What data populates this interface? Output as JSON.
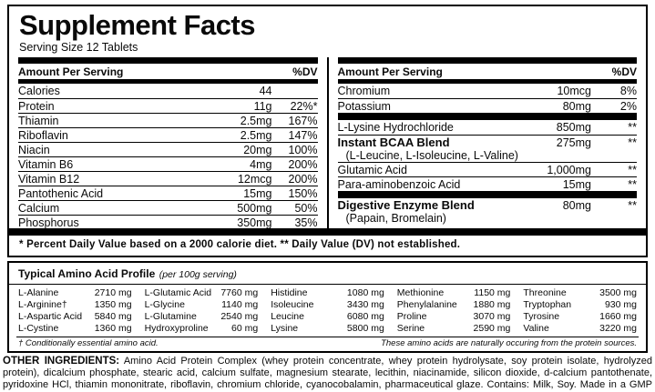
{
  "colors": {
    "ink": "#000000",
    "background": "#ffffff"
  },
  "label": {
    "title": "Supplement Facts",
    "serving_size": "Serving Size 12 Tablets",
    "column_header": "Amount Per Serving",
    "dv_header": "%DV",
    "footnote": "* Percent Daily Value based on a 2000 calorie diet. ** Daily Value (DV) not established."
  },
  "left_table": {
    "rows": [
      {
        "name": "Calories",
        "amount": "44",
        "dv": ""
      },
      {
        "name": "Protein",
        "amount": "11g",
        "dv": "22%*"
      },
      {
        "name": "Thiamin",
        "amount": "2.5mg",
        "dv": "167%"
      },
      {
        "name": "Riboflavin",
        "amount": "2.5mg",
        "dv": "147%"
      },
      {
        "name": "Niacin",
        "amount": "20mg",
        "dv": "100%"
      },
      {
        "name": "Vitamin B6",
        "amount": "4mg",
        "dv": "200%"
      },
      {
        "name": "Vitamin B12",
        "amount": "12mcg",
        "dv": "200%"
      },
      {
        "name": "Pantothenic Acid",
        "amount": "15mg",
        "dv": "150%"
      },
      {
        "name": "Calcium",
        "amount": "500mg",
        "dv": "50%"
      },
      {
        "name": "Phosphorus",
        "amount": "350mg",
        "dv": "35%"
      }
    ]
  },
  "right_table": {
    "rows": [
      {
        "name": "Chromium",
        "amount": "10mcg",
        "dv": "8%"
      },
      {
        "name": "Potassium",
        "amount": "80mg",
        "dv": "2%"
      },
      {
        "name": "L-Lysine Hydrochloride",
        "amount": "850mg",
        "dv": "**"
      },
      {
        "name": "Instant BCAA Blend",
        "amount": "275mg",
        "dv": "**",
        "sub": "(L-Leucine, L-Isoleucine, L-Valine)"
      },
      {
        "name": "Glutamic Acid",
        "amount": "1,000mg",
        "dv": "**"
      },
      {
        "name": "Para-aminobenzoic Acid",
        "amount": "15mg",
        "dv": "**"
      },
      {
        "name": "Digestive Enzyme Blend",
        "amount": "80mg",
        "dv": "**",
        "sub": "(Papain, Bromelain)"
      }
    ]
  },
  "amino_profile": {
    "title": "Typical Amino Acid Profile",
    "subtitle": "(per 100g serving)",
    "entries": [
      {
        "name": "L-Alanine",
        "amount": "2710 mg"
      },
      {
        "name": "L-Arginine†",
        "amount": "1350 mg"
      },
      {
        "name": "L-Aspartic Acid",
        "amount": "5840 mg"
      },
      {
        "name": "L-Cystine",
        "amount": "1360 mg"
      },
      {
        "name": "L-Glutamic Acid",
        "amount": "7760 mg"
      },
      {
        "name": "L-Glycine",
        "amount": "1140 mg"
      },
      {
        "name": "L-Glutamine",
        "amount": "2540 mg"
      },
      {
        "name": "Hydroxyproline",
        "amount": "60 mg"
      },
      {
        "name": "Histidine",
        "amount": "1080 mg"
      },
      {
        "name": "Isoleucine",
        "amount": "3430 mg"
      },
      {
        "name": "Leucine",
        "amount": "6080 mg"
      },
      {
        "name": "Lysine",
        "amount": "5800 mg"
      },
      {
        "name": "Methionine",
        "amount": "1150 mg"
      },
      {
        "name": "Phenylalanine",
        "amount": "1880 mg"
      },
      {
        "name": "Proline",
        "amount": "3070 mg"
      },
      {
        "name": "Serine",
        "amount": "2590 mg"
      },
      {
        "name": "Threonine",
        "amount": "3500 mg"
      },
      {
        "name": "Tryptophan",
        "amount": "930 mg"
      },
      {
        "name": "Tyrosine",
        "amount": "1660 mg"
      },
      {
        "name": "Valine",
        "amount": "3220 mg"
      }
    ],
    "footnote_left": "† Conditionally essential amino acid.",
    "footnote_right": "These amino acids are naturally occuring from the protein sources."
  },
  "other_ingredients": {
    "heading": "OTHER INGREDIENTS:",
    "text": "Amino Acid Protein Complex (whey protein concentrate, whey protein hydrolysate, soy protein isolate, hydrolyzed protein), dicalcium phosphate, stearic acid, calcium sulfate, magnesium stearate, lecithin, niacinamide, silicon dioxide, d-calcium pantothenate, pyridoxine HCl, thiamin mononitrate, riboflavin, chromium chloride, cyanocobalamin, pharmaceutical glaze. Contains: Milk, Soy. Made in a GMP facility on equipment that processes milk, soy, egg, peanuts, tree nuts, fish, shellfish, and wheat."
  }
}
